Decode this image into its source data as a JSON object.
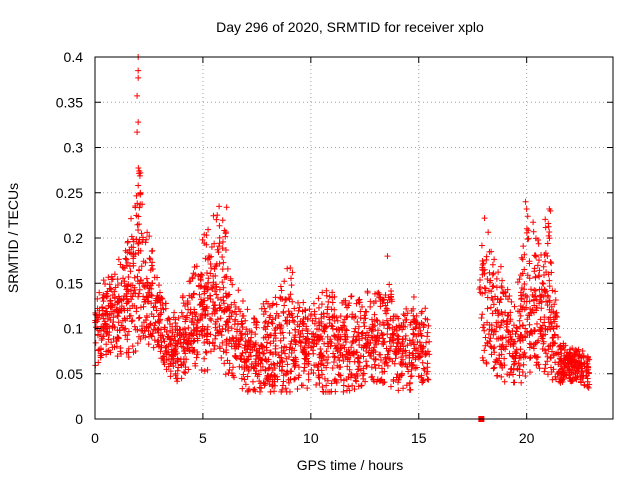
{
  "chart_data": {
    "type": "scatter",
    "title": "Day 296 of 2020, SRMTID for receiver xplo",
    "xlabel": "GPS time / hours",
    "ylabel": "SRMTID / TECUs",
    "xlim": [
      0,
      24
    ],
    "ylim": [
      0,
      0.4
    ],
    "xticks": [
      0,
      5,
      10,
      15,
      20
    ],
    "xtick_labels": [
      "0",
      "5",
      "10",
      "15",
      "20"
    ],
    "yticks": [
      0,
      0.05,
      0.1,
      0.15,
      0.2,
      0.25,
      0.3,
      0.35,
      0.4
    ],
    "ytick_labels": [
      "0",
      "0.05",
      "0.1",
      "0.15",
      "0.2",
      "0.25",
      "0.3",
      "0.35",
      "0.4"
    ],
    "grid": true,
    "marker": "+",
    "marker_color": "#ff0000",
    "envelope": {
      "description": "approximate per-time band of scattered SRMTID values (x in hours, low/high in TECU)",
      "x": [
        0.0,
        0.5,
        1.0,
        1.5,
        2.0,
        2.5,
        3.0,
        3.5,
        4.0,
        4.5,
        5.0,
        5.5,
        6.0,
        6.5,
        7.0,
        7.5,
        8.0,
        8.5,
        9.0,
        9.5,
        10.0,
        10.5,
        11.0,
        11.5,
        12.0,
        12.5,
        13.0,
        13.5,
        14.0,
        14.5,
        15.0,
        15.5,
        17.8,
        18.2,
        18.5,
        19.0,
        19.5,
        20.0,
        20.5,
        21.0,
        21.5,
        22.0,
        22.5,
        22.9
      ],
      "low": [
        0.05,
        0.07,
        0.07,
        0.06,
        0.08,
        0.08,
        0.07,
        0.04,
        0.04,
        0.06,
        0.05,
        0.06,
        0.05,
        0.04,
        0.03,
        0.03,
        0.03,
        0.03,
        0.03,
        0.03,
        0.03,
        0.03,
        0.03,
        0.03,
        0.03,
        0.04,
        0.04,
        0.04,
        0.03,
        0.03,
        0.04,
        0.04,
        0.07,
        0.05,
        0.05,
        0.04,
        0.04,
        0.04,
        0.06,
        0.04,
        0.04,
        0.04,
        0.04,
        0.03
      ],
      "high": [
        0.13,
        0.16,
        0.17,
        0.2,
        0.28,
        0.21,
        0.15,
        0.12,
        0.13,
        0.17,
        0.2,
        0.23,
        0.22,
        0.15,
        0.13,
        0.11,
        0.14,
        0.16,
        0.17,
        0.15,
        0.12,
        0.15,
        0.14,
        0.13,
        0.14,
        0.14,
        0.15,
        0.17,
        0.12,
        0.13,
        0.14,
        0.13,
        0.18,
        0.22,
        0.19,
        0.16,
        0.14,
        0.23,
        0.21,
        0.23,
        0.09,
        0.08,
        0.08,
        0.07
      ],
      "density": [
        8,
        10,
        12,
        12,
        12,
        12,
        10,
        10,
        10,
        12,
        12,
        12,
        12,
        10,
        10,
        10,
        10,
        10,
        10,
        10,
        10,
        10,
        10,
        10,
        10,
        10,
        10,
        10,
        10,
        10,
        10,
        8,
        6,
        10,
        10,
        10,
        10,
        12,
        12,
        12,
        12,
        12,
        12,
        8
      ]
    },
    "outliers": [
      {
        "x": 2.0,
        "y": 0.4
      },
      {
        "x": 2.0,
        "y": 0.385
      },
      {
        "x": 2.0,
        "y": 0.377
      },
      {
        "x": 1.95,
        "y": 0.357
      },
      {
        "x": 2.0,
        "y": 0.328
      },
      {
        "x": 1.95,
        "y": 0.317
      },
      {
        "x": 2.05,
        "y": 0.274
      },
      {
        "x": 2.1,
        "y": 0.272
      },
      {
        "x": 2.0,
        "y": 0.258
      },
      {
        "x": 2.1,
        "y": 0.25
      },
      {
        "x": 18.05,
        "y": 0.222
      },
      {
        "x": 19.95,
        "y": 0.24
      },
      {
        "x": 20.0,
        "y": 0.232
      },
      {
        "x": 20.05,
        "y": 0.224
      },
      {
        "x": 21.05,
        "y": 0.232
      },
      {
        "x": 21.1,
        "y": 0.23
      },
      {
        "x": 6.1,
        "y": 0.234
      },
      {
        "x": 5.75,
        "y": 0.235
      },
      {
        "x": 13.55,
        "y": 0.18
      }
    ],
    "gap_marker": {
      "x": 17.9,
      "y": 0.0
    }
  }
}
